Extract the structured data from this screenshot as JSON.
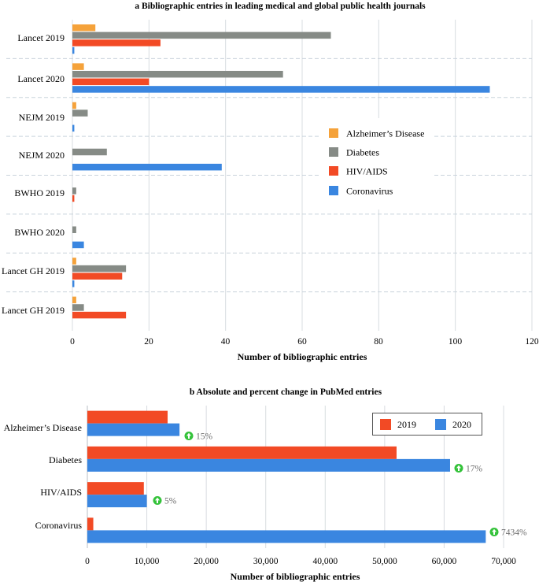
{
  "colors": {
    "alzheimers": "#f5a23a",
    "diabetes": "#868b86",
    "hiv": "#f24a25",
    "coronavirus": "#3a86e0",
    "grid": "#d8dce0",
    "separator": "#c9d3dc",
    "badge": "#34c23a"
  },
  "chart_data": [
    {
      "type": "bar",
      "orientation": "horizontal",
      "title": "a Bibliographic entries in leading medical and global public health journals",
      "xlabel": "Number of bibliographic entries",
      "ylabel": "",
      "xlim": [
        0,
        120
      ],
      "xticks": [
        "0",
        "20",
        "40",
        "60",
        "80",
        "100",
        "120"
      ],
      "categories": [
        "Lancet 2019",
        "Lancet 2020",
        "NEJM 2019",
        "NEJM 2020",
        "BWHO 2019",
        "BWHO 2020",
        "Lancet GH 2019",
        "Lancet GH 2019"
      ],
      "series": [
        {
          "name": "Alzheimer’s Disease",
          "key": "alzheimers",
          "values": [
            6,
            3,
            1,
            0,
            0,
            0,
            1,
            1
          ]
        },
        {
          "name": "Diabetes",
          "key": "diabetes",
          "values": [
            67.5,
            55,
            4,
            9,
            1,
            1,
            14,
            3
          ]
        },
        {
          "name": "HIV/AIDS",
          "key": "hiv",
          "values": [
            23,
            20,
            0,
            0,
            0.5,
            0,
            13,
            14
          ]
        },
        {
          "name": "Coronavirus",
          "key": "coronavirus",
          "values": [
            0.5,
            109,
            0.5,
            39,
            0,
            3,
            0.5,
            0
          ]
        }
      ],
      "legend_position": "center-right"
    },
    {
      "type": "bar",
      "orientation": "horizontal",
      "title": "b Absolute and percent change in PubMed entries",
      "xlabel": "Number of bibliographic entries",
      "ylabel": "",
      "xlim": [
        0,
        70000
      ],
      "xticks": [
        "0",
        "10,000",
        "20,000",
        "30,000",
        "40,000",
        "50,000",
        "60,000",
        "70,000"
      ],
      "categories": [
        "Alzheimer’s Disease",
        "Diabetes",
        "HIV/AIDS",
        "Coronavirus"
      ],
      "series": [
        {
          "name": "2019",
          "key": "hiv",
          "values": [
            13500,
            52000,
            9500,
            1000
          ]
        },
        {
          "name": "2020",
          "key": "coronavirus",
          "values": [
            15500,
            61000,
            10000,
            67000
          ]
        }
      ],
      "annotations": [
        "15%",
        "17%",
        "5%",
        "7434%"
      ],
      "legend_position": "top-right"
    }
  ]
}
